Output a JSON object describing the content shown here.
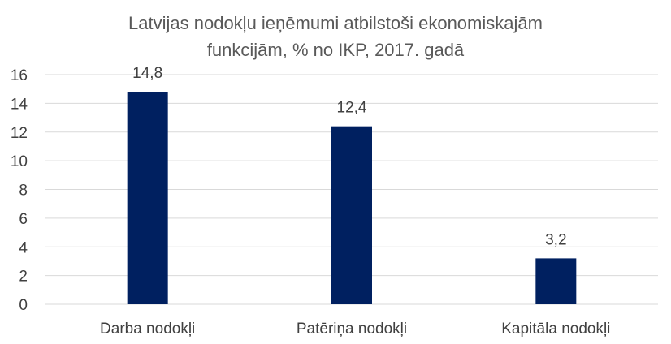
{
  "chart_data": {
    "type": "bar",
    "title_lines": [
      "Latvijas nodokļu ieņēmumi atbilstoši ekonomiskajām",
      "funkcijām, % no IKP, 2017. gadā"
    ],
    "categories": [
      "Darba nodokļi",
      "Patēriņa nodokļi",
      "Kapitāla nodokļi"
    ],
    "values": [
      14.8,
      12.4,
      3.2
    ],
    "data_labels": [
      "14,8",
      "12,4",
      "3,2"
    ],
    "y_ticks": [
      "0",
      "2",
      "4",
      "6",
      "8",
      "10",
      "12",
      "14",
      "16"
    ],
    "ylim": [
      0,
      16
    ],
    "grid": true,
    "legend": "none",
    "colors": {
      "bar": "#002060",
      "grid": "#d9d9d9",
      "text": "#595959"
    }
  }
}
